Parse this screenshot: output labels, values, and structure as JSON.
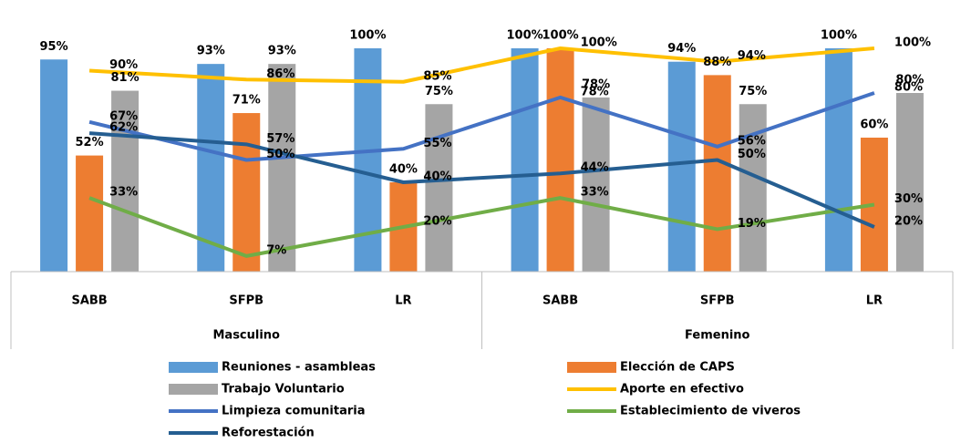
{
  "chart_data": {
    "type": "bar_line",
    "categories": [
      "SABB",
      "SFPB",
      "LR",
      "SABB",
      "SFPB",
      "LR"
    ],
    "groups": [
      "Masculino",
      "Femenino"
    ],
    "ylim": [
      0,
      100
    ],
    "series": [
      {
        "name": "Reuniones - asambleas",
        "type": "bar",
        "color": "#5b9bd5",
        "values": [
          95,
          93,
          100,
          100,
          94,
          100
        ],
        "value_labels": [
          "95%",
          "93%",
          "100%",
          "100%",
          "94%",
          "100%"
        ]
      },
      {
        "name": "Elección de CAPS",
        "type": "bar",
        "color": "#ed7d31",
        "values": [
          52,
          71,
          40,
          100,
          88,
          60
        ],
        "value_labels": [
          "52%",
          "71%",
          "40%",
          "100%",
          "88%",
          "60%"
        ]
      },
      {
        "name": "Trabajo Voluntario",
        "type": "bar",
        "color": "#a5a5a5",
        "values": [
          81,
          93,
          75,
          78,
          75,
          80
        ],
        "value_labels": [
          "81%",
          "93%",
          "75%",
          "78%",
          "75%",
          "80%"
        ]
      },
      {
        "name": "Aporte en efectivo",
        "type": "line",
        "color": "#ffc000",
        "values": [
          90,
          86,
          85,
          100,
          94,
          100
        ],
        "value_labels": [
          "90%",
          "86%",
          "85%",
          "100%",
          "94%",
          "100%"
        ]
      },
      {
        "name": "Limpieza comunitaria",
        "type": "line",
        "color": "#4472c4",
        "values": [
          67,
          50,
          55,
          78,
          56,
          80
        ],
        "value_labels": [
          "67%",
          "50%",
          "55%",
          "78%",
          "56%",
          "80%"
        ]
      },
      {
        "name": "Establecimiento de viveros",
        "type": "line",
        "color": "#70ad47",
        "values": [
          33,
          7,
          20,
          33,
          19,
          30
        ],
        "value_labels": [
          "33%",
          "7%",
          "20%",
          "33%",
          "19%",
          "30%"
        ]
      },
      {
        "name": "Reforestación",
        "type": "line",
        "color": "#255e91",
        "values": [
          62,
          57,
          40,
          44,
          50,
          20
        ],
        "value_labels": [
          "62%",
          "57%",
          "40%",
          "44%",
          "50%",
          "20%"
        ]
      }
    ]
  }
}
